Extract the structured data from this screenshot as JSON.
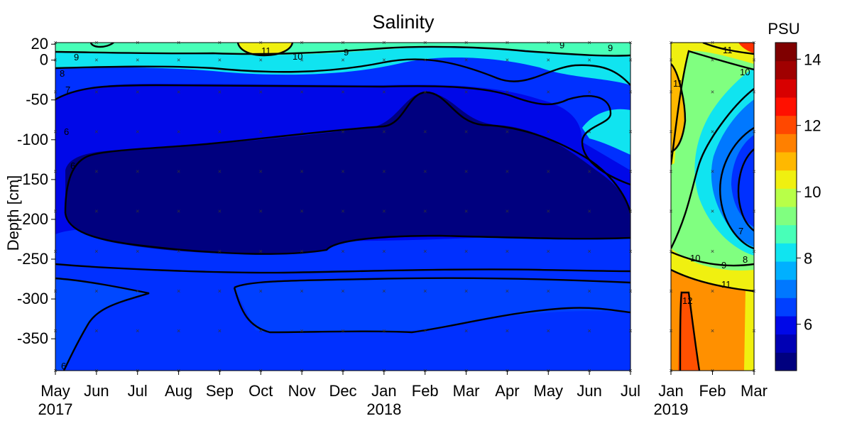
{
  "chart_data": {
    "type": "heatmap",
    "title": "Salinity",
    "ylabel": "Depth [cm]",
    "colorbar_label": "PSU",
    "ylim": [
      -390,
      22
    ],
    "yticks": [
      20,
      0,
      -50,
      -100,
      -150,
      -200,
      -250,
      -300,
      -350
    ],
    "colorbar": {
      "range": [
        4.6,
        14.5
      ],
      "ticks": [
        6,
        8,
        10,
        12,
        14
      ],
      "colors": [
        "#00007f",
        "#0000b4",
        "#0008e8",
        "#0040ff",
        "#0078ff",
        "#00b0ff",
        "#10e4f0",
        "#48ffb8",
        "#80ff80",
        "#b8ff48",
        "#f0f010",
        "#ffb800",
        "#ff8000",
        "#ff4800",
        "#ff1000",
        "#d80000",
        "#a00000",
        "#7f0000"
      ]
    },
    "panels": [
      {
        "name": "panel-2017-2018",
        "x_ticks": [
          "May",
          "Jun",
          "Jul",
          "Aug",
          "Sep",
          "Oct",
          "Nov",
          "Dec",
          "Jan",
          "Feb",
          "Mar",
          "Apr",
          "May",
          "Jun",
          "Jul"
        ],
        "year_labels": [
          {
            "at": "May",
            "text": "2017"
          },
          {
            "at": "Jan",
            "text": "2018"
          }
        ],
        "contour_labels": [
          "9",
          "8",
          "7",
          "6",
          "11",
          "10",
          "9",
          "6",
          "9",
          "9",
          "6"
        ]
      },
      {
        "name": "panel-2019",
        "x_ticks": [
          "Jan",
          "Feb",
          "Mar"
        ],
        "year_labels": [
          {
            "at": "Jan",
            "text": "2019"
          }
        ],
        "contour_labels": [
          "11",
          "10",
          "11",
          "10",
          "9",
          "8",
          "7",
          "11",
          "12"
        ]
      }
    ]
  }
}
